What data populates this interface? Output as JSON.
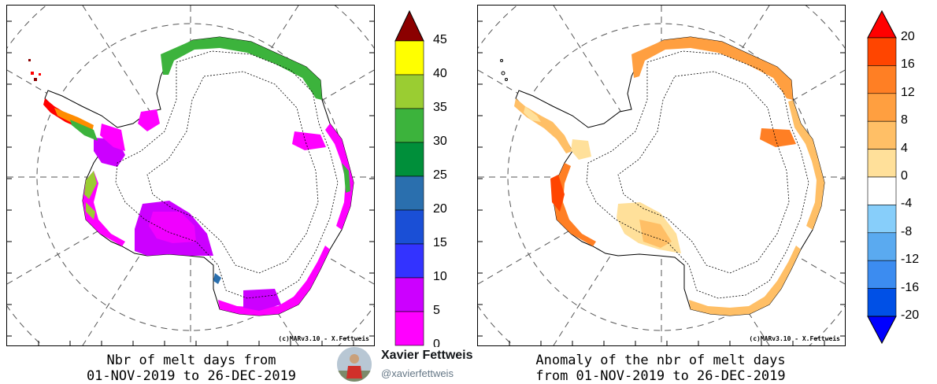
{
  "left_panel": {
    "title_line1": "Nbr of melt days from",
    "title_line2": "01-NOV-2019 to 26-DEC-2019",
    "credit": "(c)MARv3.10 - X.Fettweis",
    "colorbar": {
      "ticks": [
        "45",
        "40",
        "35",
        "30",
        "25",
        "20",
        "15",
        "10",
        "5",
        "0"
      ],
      "colors": [
        "#ff00ff",
        "#cc00ff",
        "#3333ff",
        "#1a4fd6",
        "#2a6fae",
        "#008f3a",
        "#3cb33c",
        "#9acd32",
        "#ffff00",
        "#ff8c00",
        "#ff0000"
      ],
      "extend_color": "#8b0000"
    }
  },
  "right_panel": {
    "title_line1": "Anomaly of the nbr of melt days",
    "title_line2": "from 01-NOV-2019 to 26-DEC-2019",
    "credit": "(c)MARv3.10 - X.Fettweis",
    "colorbar": {
      "ticks": [
        "20",
        "16",
        "12",
        "8",
        "4",
        "0",
        "-4",
        "-8",
        "-12",
        "-16",
        "-20"
      ],
      "colors": [
        "#ff4500",
        "#ff7f24",
        "#ff9f40",
        "#ffbf66",
        "#ffe09a",
        "#ffffff",
        "#ffffff",
        "#87cefa",
        "#5aaaf0",
        "#3c8cf0",
        "#1e6ef0",
        "#0050e6"
      ],
      "top_color": "#ff0000",
      "bottom_color": "#0000ff"
    }
  },
  "author": {
    "name": "Xavier Fettweis",
    "handle": "@xavierfettweis"
  }
}
